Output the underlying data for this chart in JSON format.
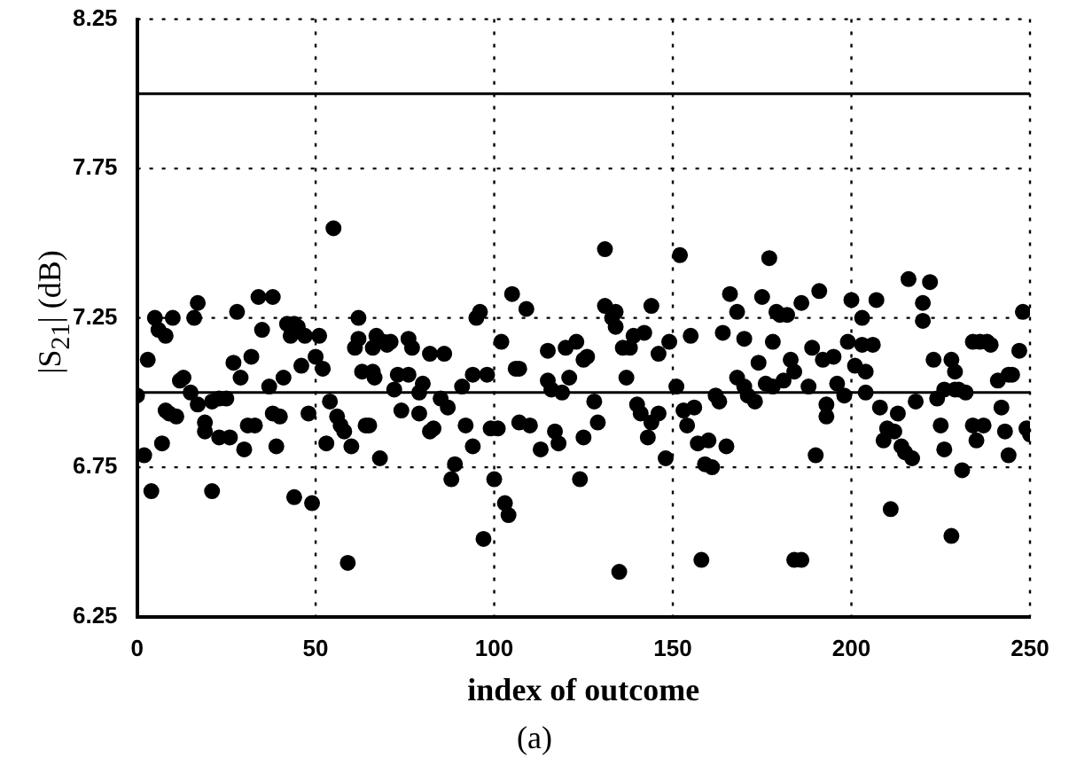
{
  "chart_data": {
    "type": "scatter",
    "xlabel": "index of outcome",
    "ylabel": "|S$_{21}$| (dB)",
    "annotations": [
      "(a)"
    ],
    "x": [
      0,
      2,
      3,
      4,
      5,
      6,
      7,
      8,
      8,
      9,
      10,
      11,
      12,
      13,
      15,
      16,
      17,
      17,
      19,
      19,
      21,
      21,
      23,
      23,
      25,
      26,
      27,
      28,
      29,
      30,
      31,
      32,
      33,
      34,
      35,
      37,
      38,
      38,
      39,
      40,
      41,
      42,
      43,
      44,
      44,
      45,
      46,
      47,
      48,
      49,
      50,
      51,
      52,
      53,
      54,
      55,
      56,
      57,
      58,
      59,
      60,
      61,
      62,
      62,
      63,
      64,
      65,
      67,
      66,
      66,
      66.5,
      68,
      69,
      70,
      71,
      72,
      73,
      74,
      76,
      76,
      77,
      79,
      79,
      80,
      82,
      82,
      83,
      85,
      86,
      87,
      88,
      89,
      91,
      92,
      94,
      94,
      95,
      96,
      97,
      98,
      99,
      100,
      101,
      102,
      103,
      104,
      105,
      106,
      107,
      107,
      109,
      110,
      113,
      115,
      115,
      116,
      117,
      118,
      119,
      120,
      121,
      123,
      124,
      125,
      125,
      126,
      128,
      129,
      131,
      131,
      133,
      134,
      134,
      135,
      136,
      137,
      138,
      139,
      140,
      141,
      142,
      143,
      144,
      144,
      146,
      146,
      148,
      149,
      151,
      152,
      153,
      154,
      155,
      156,
      157,
      158,
      159,
      160,
      161,
      162,
      163,
      164,
      165,
      166,
      168,
      168,
      170,
      170,
      171,
      173,
      174,
      175,
      177,
      176,
      178,
      178,
      179,
      180,
      181,
      182,
      183,
      184,
      186,
      184,
      186,
      188,
      189,
      190,
      191,
      192,
      193,
      193,
      195,
      196,
      198,
      199,
      200,
      201,
      203,
      203,
      204,
      204,
      206,
      207,
      208,
      209,
      210,
      211,
      212,
      213,
      214,
      215,
      216,
      217,
      218,
      220,
      220,
      222,
      223,
      224,
      225,
      226,
      226,
      228,
      228,
      229,
      229,
      230,
      231,
      232,
      234,
      234,
      235,
      236,
      237,
      238,
      239,
      241,
      242,
      243,
      244,
      244,
      245,
      247,
      248,
      249,
      250
    ],
    "values": [
      6.99,
      6.79,
      7.11,
      6.67,
      7.25,
      7.21,
      6.83,
      6.94,
      7.19,
      6.93,
      7.25,
      6.92,
      7.04,
      7.05,
      7.0,
      7.25,
      7.3,
      6.96,
      6.87,
      6.9,
      6.67,
      6.97,
      6.85,
      6.98,
      6.98,
      6.85,
      7.1,
      7.27,
      7.05,
      6.81,
      6.89,
      7.12,
      6.89,
      7.32,
      7.21,
      7.02,
      7.32,
      6.93,
      6.82,
      6.92,
      7.05,
      7.23,
      7.19,
      6.65,
      7.23,
      7.22,
      7.09,
      7.19,
      6.93,
      6.63,
      7.12,
      7.19,
      7.08,
      6.83,
      6.97,
      7.55,
      6.92,
      6.89,
      6.87,
      6.43,
      6.82,
      7.15,
      7.25,
      7.18,
      7.07,
      6.89,
      6.89,
      7.19,
      7.15,
      7.07,
      7.05,
      6.78,
      7.17,
      7.16,
      7.17,
      7.01,
      7.06,
      6.94,
      7.18,
      7.06,
      7.15,
      6.93,
      7.0,
      7.03,
      7.13,
      6.87,
      6.88,
      6.98,
      7.13,
      6.95,
      6.71,
      6.76,
      7.02,
      6.89,
      6.82,
      7.06,
      7.25,
      7.27,
      6.51,
      7.06,
      6.88,
      6.71,
      6.88,
      7.17,
      6.63,
      6.59,
      7.33,
      7.08,
      7.08,
      6.9,
      7.28,
      6.89,
      6.81,
      7.04,
      7.14,
      7.01,
      6.87,
      6.83,
      7.0,
      7.15,
      7.05,
      7.17,
      6.71,
      6.85,
      7.11,
      7.12,
      6.97,
      6.9,
      7.48,
      7.29,
      7.25,
      7.22,
      7.27,
      6.4,
      7.15,
      7.05,
      7.15,
      7.19,
      6.96,
      6.93,
      7.2,
      6.85,
      7.29,
      6.9,
      7.13,
      6.93,
      6.78,
      7.17,
      7.02,
      7.46,
      6.94,
      6.89,
      7.19,
      6.95,
      6.83,
      6.44,
      6.76,
      6.84,
      6.75,
      6.99,
      6.97,
      7.2,
      6.82,
      7.33,
      7.27,
      7.05,
      7.18,
      7.02,
      6.99,
      6.97,
      7.1,
      7.32,
      7.45,
      7.03,
      7.17,
      7.02,
      7.27,
      7.26,
      7.04,
      7.26,
      7.11,
      6.44,
      6.44,
      7.07,
      7.3,
      7.02,
      7.15,
      6.79,
      7.34,
      7.11,
      6.92,
      6.96,
      7.12,
      7.03,
      6.99,
      7.17,
      7.31,
      7.09,
      7.25,
      7.16,
      7.07,
      7.0,
      7.16,
      7.31,
      6.95,
      6.84,
      6.88,
      6.61,
      6.87,
      6.93,
      6.82,
      6.8,
      7.38,
      6.78,
      6.97,
      7.24,
      7.3,
      7.37,
      7.11,
      6.98,
      6.89,
      6.81,
      7.01,
      6.52,
      7.11,
      7.01,
      7.07,
      7.01,
      6.74,
      7.0,
      7.17,
      6.89,
      6.84,
      7.17,
      6.89,
      7.17,
      7.16,
      7.04,
      6.95,
      6.87,
      7.06,
      6.79,
      7.06,
      7.14,
      7.27,
      6.88,
      6.86
    ],
    "color": "#000000",
    "marker": "circle",
    "xlim": [
      0,
      250
    ],
    "xticks": [
      0,
      50,
      100,
      150,
      200,
      250
    ],
    "ylim": [
      6.25,
      8.25
    ],
    "yticks": [
      6.25,
      6.75,
      7.25,
      7.75,
      8.25
    ],
    "grid": true,
    "legend": false,
    "ref_lines": [
      {
        "axis": "y",
        "value": 7.0,
        "color": "#000000",
        "line_style": "solid"
      },
      {
        "axis": "y",
        "value": 8.0,
        "color": "#000000",
        "line_style": "solid"
      }
    ]
  }
}
